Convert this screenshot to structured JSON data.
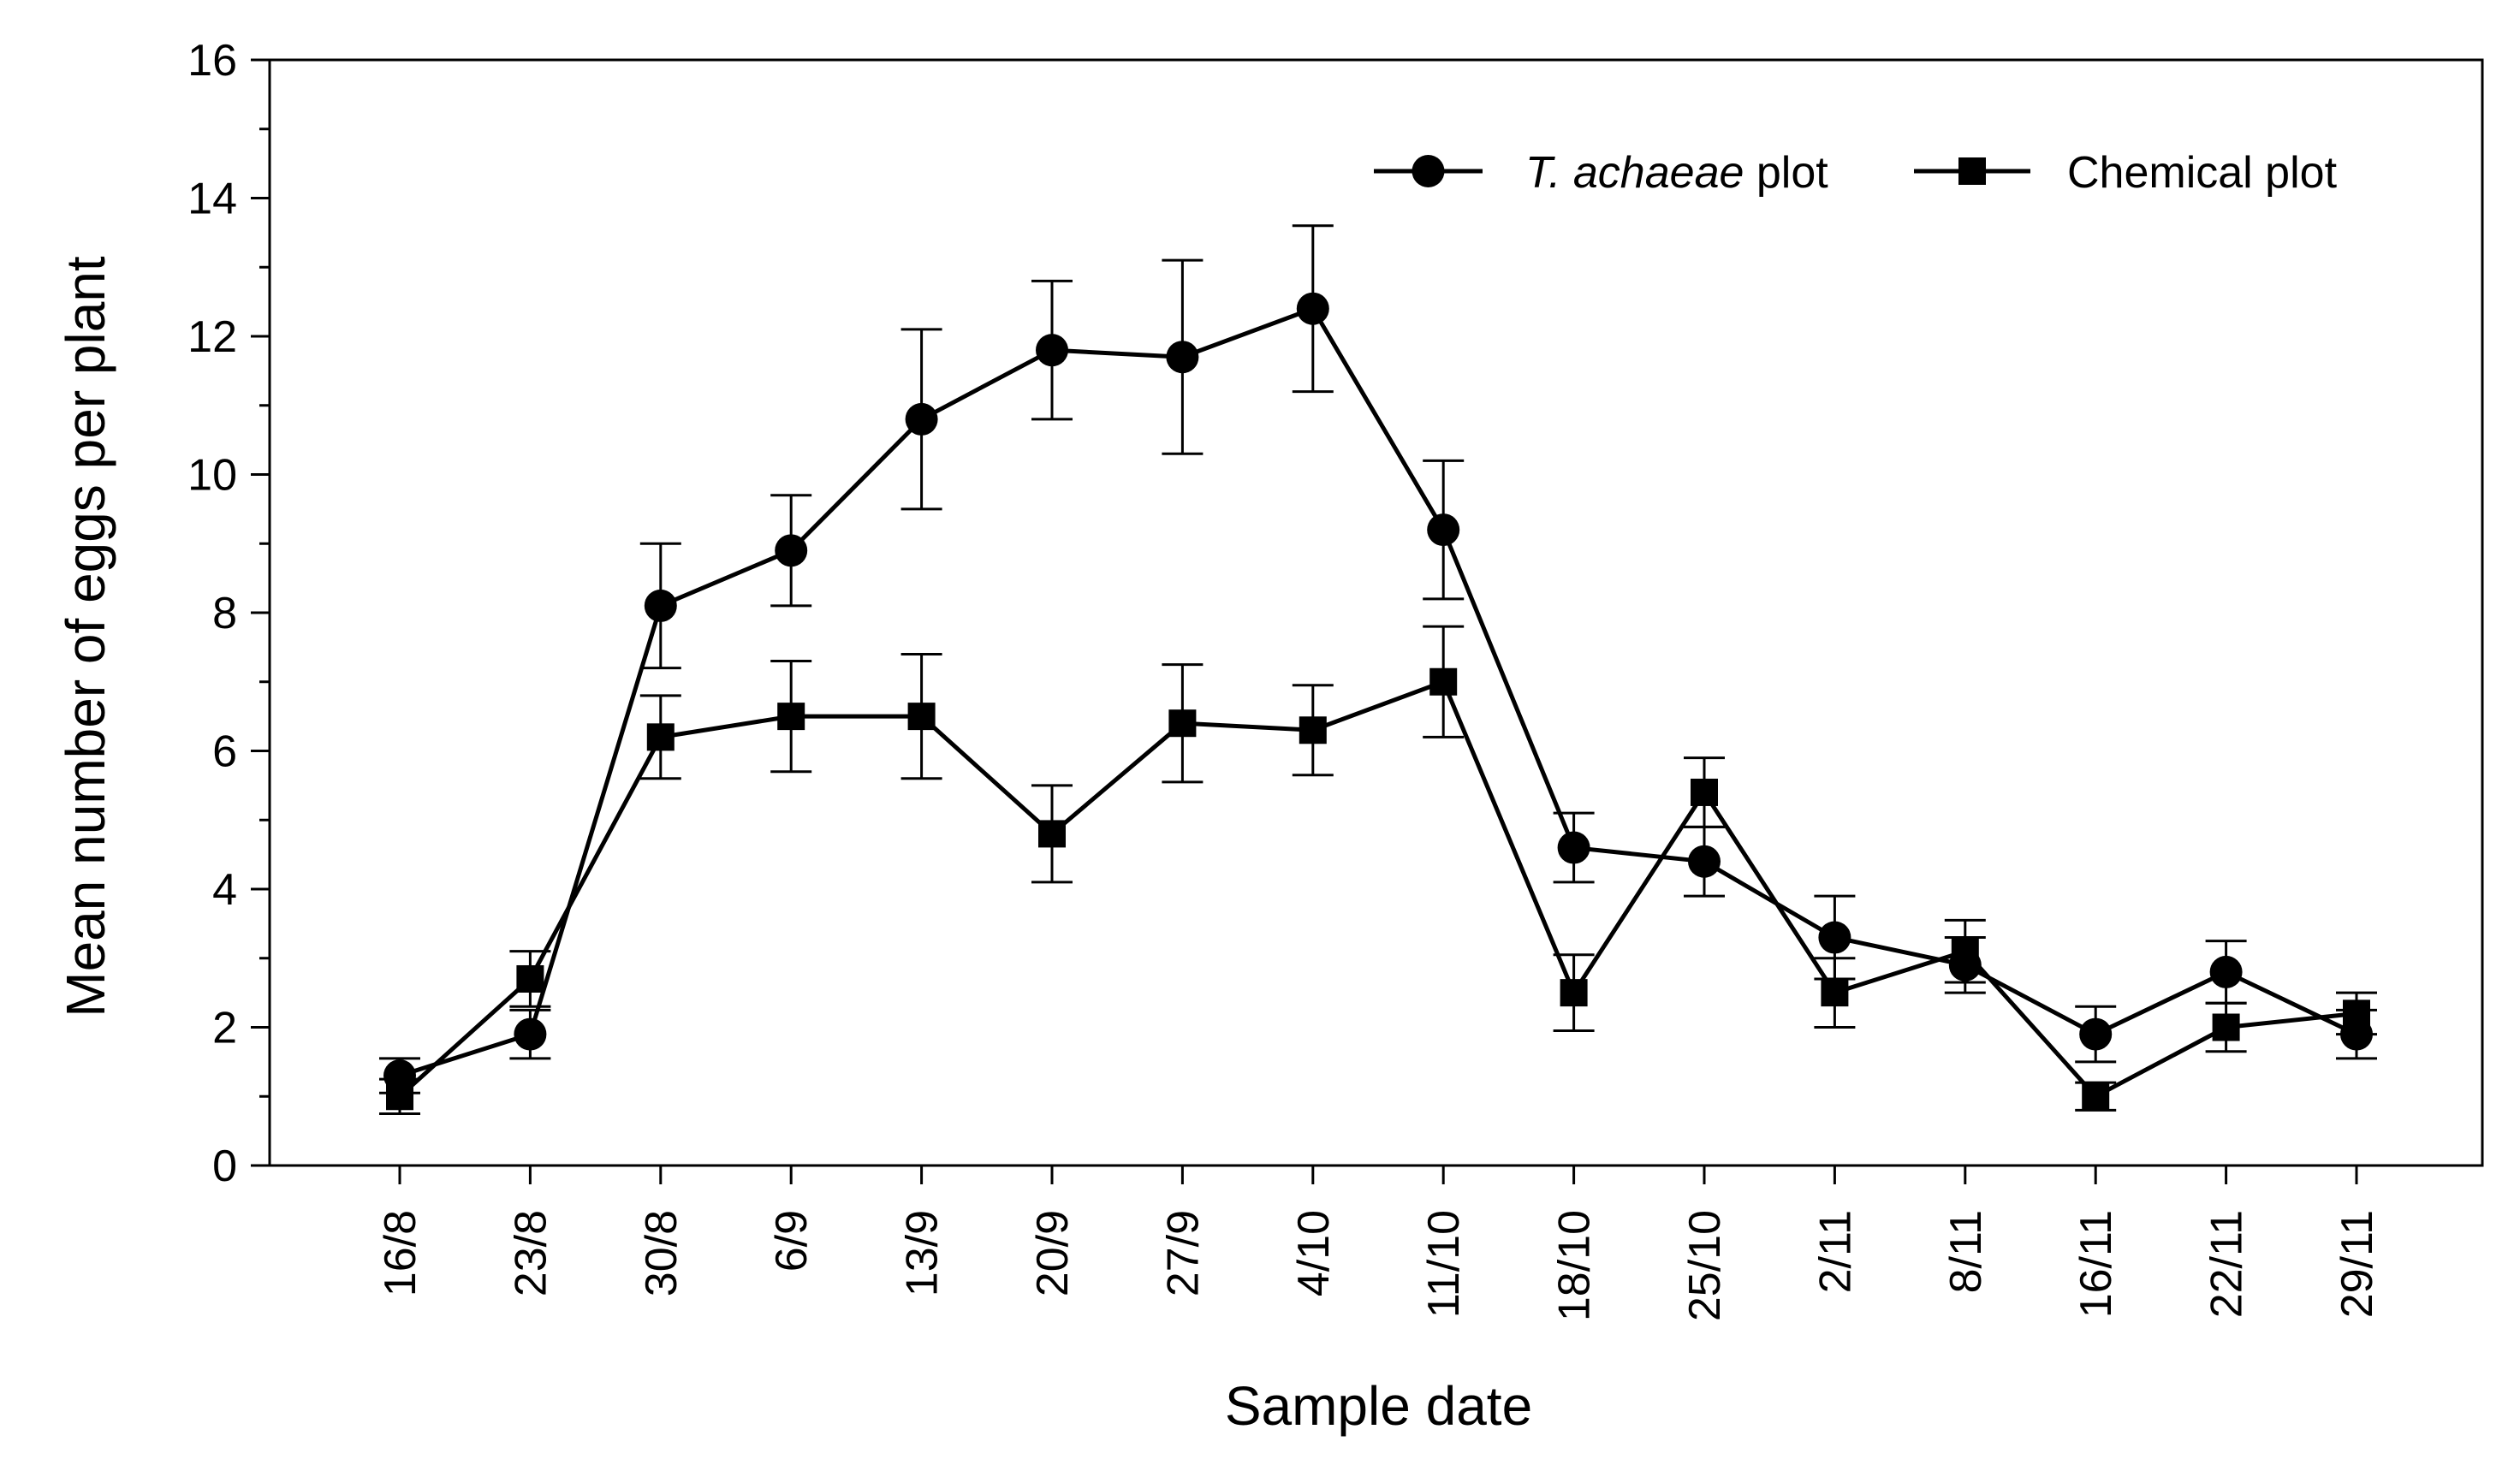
{
  "chart_data": {
    "type": "line",
    "title": "",
    "xlabel": "Sample date",
    "ylabel": "Mean number of eggs per plant",
    "ylim": [
      0,
      16
    ],
    "yticks": [
      0,
      2,
      4,
      6,
      8,
      10,
      12,
      14,
      16
    ],
    "grid": false,
    "legend_position": "top-right",
    "categories": [
      "16/8",
      "23/8",
      "30/8",
      "6/9",
      "13/9",
      "20/9",
      "27/9",
      "4/10",
      "11/10",
      "18/10",
      "25/10",
      "2/11",
      "8/11",
      "16/11",
      "22/11",
      "29/11"
    ],
    "series": [
      {
        "name_italic": "T. achaeae",
        "name_rest": " plot",
        "marker": "circle",
        "color": "#000000",
        "values": [
          1.3,
          1.9,
          8.1,
          8.9,
          10.8,
          11.8,
          11.7,
          12.4,
          9.2,
          4.6,
          4.4,
          3.3,
          2.9,
          1.9,
          2.8,
          1.9
        ],
        "errors": [
          0.25,
          0.35,
          0.9,
          0.8,
          1.3,
          1.0,
          1.4,
          1.2,
          1.0,
          0.5,
          0.5,
          0.6,
          0.4,
          0.4,
          0.45,
          0.35
        ]
      },
      {
        "name_italic": "",
        "name_rest": "Chemical plot",
        "marker": "square",
        "color": "#000000",
        "values": [
          1.0,
          2.7,
          6.2,
          6.5,
          6.5,
          4.8,
          6.4,
          6.3,
          7.0,
          2.5,
          5.4,
          2.5,
          3.1,
          1.0,
          2.0,
          2.2
        ],
        "errors": [
          0.25,
          0.4,
          0.6,
          0.8,
          0.9,
          0.7,
          0.85,
          0.65,
          0.8,
          0.55,
          0.5,
          0.5,
          0.45,
          0.2,
          0.35,
          0.3
        ]
      }
    ]
  }
}
